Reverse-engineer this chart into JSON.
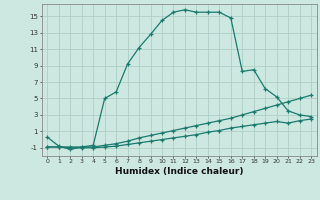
{
  "xlabel": "Humidex (Indice chaleur)",
  "background_color": "#cde8e0",
  "grid_color": "#aecfc6",
  "line_color": "#1a7a6e",
  "x_ticks": [
    0,
    1,
    2,
    3,
    4,
    5,
    6,
    7,
    8,
    9,
    10,
    11,
    12,
    13,
    14,
    15,
    16,
    17,
    18,
    19,
    20,
    21,
    22,
    23
  ],
  "y_ticks": [
    -1,
    1,
    3,
    5,
    7,
    9,
    11,
    13,
    15
  ],
  "ylim": [
    -2.0,
    16.5
  ],
  "xlim": [
    -0.5,
    23.5
  ],
  "series": [
    {
      "x": [
        0,
        1,
        2,
        3,
        4,
        5,
        6,
        7,
        8,
        9,
        10,
        11,
        12,
        13,
        14,
        15,
        16,
        17,
        18,
        19,
        20,
        21,
        22,
        23
      ],
      "y": [
        0.3,
        -0.8,
        -1.2,
        -0.9,
        -0.7,
        5.0,
        5.8,
        9.2,
        11.2,
        12.8,
        14.5,
        15.5,
        15.8,
        15.5,
        15.5,
        15.5,
        14.8,
        8.3,
        8.5,
        6.2,
        5.2,
        3.5,
        3.0,
        2.8
      ]
    },
    {
      "x": [
        0,
        1,
        2,
        3,
        4,
        5,
        6,
        7,
        8,
        9,
        10,
        11,
        12,
        13,
        14,
        15,
        16,
        17,
        18,
        19,
        20,
        21,
        22,
        23
      ],
      "y": [
        -0.9,
        -0.9,
        -0.9,
        -0.9,
        -0.9,
        -0.7,
        -0.5,
        -0.2,
        0.2,
        0.5,
        0.8,
        1.1,
        1.4,
        1.7,
        2.0,
        2.3,
        2.6,
        3.0,
        3.4,
        3.8,
        4.2,
        4.6,
        5.0,
        5.4
      ]
    },
    {
      "x": [
        0,
        1,
        2,
        3,
        4,
        5,
        6,
        7,
        8,
        9,
        10,
        11,
        12,
        13,
        14,
        15,
        16,
        17,
        18,
        19,
        20,
        21,
        22,
        23
      ],
      "y": [
        -0.9,
        -0.9,
        -1.0,
        -1.0,
        -1.0,
        -0.9,
        -0.8,
        -0.6,
        -0.4,
        -0.2,
        0.0,
        0.2,
        0.4,
        0.6,
        0.9,
        1.1,
        1.4,
        1.6,
        1.8,
        2.0,
        2.2,
        2.0,
        2.3,
        2.5
      ]
    }
  ]
}
